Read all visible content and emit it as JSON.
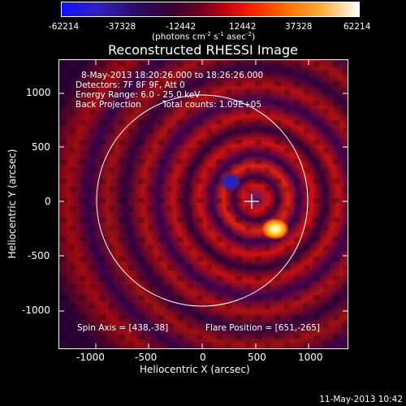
{
  "colorbar": {
    "ticks": [
      "-62214",
      "-37328",
      "-12442",
      "12442",
      "37328",
      "62214"
    ],
    "units_prefix": "(photons cm",
    "units_sup1": "-2",
    "units_mid": " s",
    "units_sup2": "-1",
    "units_mid2": " asec",
    "units_sup3": "-2",
    "units_suffix": ")",
    "min": -62214,
    "max": 62214,
    "colors": [
      "#0000ff",
      "#3b008a",
      "#7a1030",
      "#ff0000",
      "#ffa500",
      "#ffffff"
    ]
  },
  "title": "Reconstructed RHESSI Image",
  "info": {
    "time_range": "8-May-2013 18:20:26.000 to 18:26:26.000",
    "detectors": "Detectors: 7F 8F 9F, Att 0",
    "energy": "Energy Range: 6.0 - 25.0 keV",
    "method": "Back Projection",
    "counts": "Total counts: 1.09E+05",
    "spin_axis": "Spin Axis = [438,-38]",
    "flare_position": "Flare Position = [651,-265]"
  },
  "axes": {
    "x_title": "Heliocentric X (arcsec)",
    "y_title": "Heliocentric Y (arcsec)",
    "x_ticks": [
      "-1000",
      "-500",
      "0",
      "500",
      "1000"
    ],
    "y_ticks": [
      "1000",
      "500",
      "0",
      "-500",
      "-1000"
    ],
    "x_range": [
      -1300,
      1300
    ],
    "y_range": [
      -1300,
      1300
    ]
  },
  "timestamp": "11-May-2013 10:42"
}
